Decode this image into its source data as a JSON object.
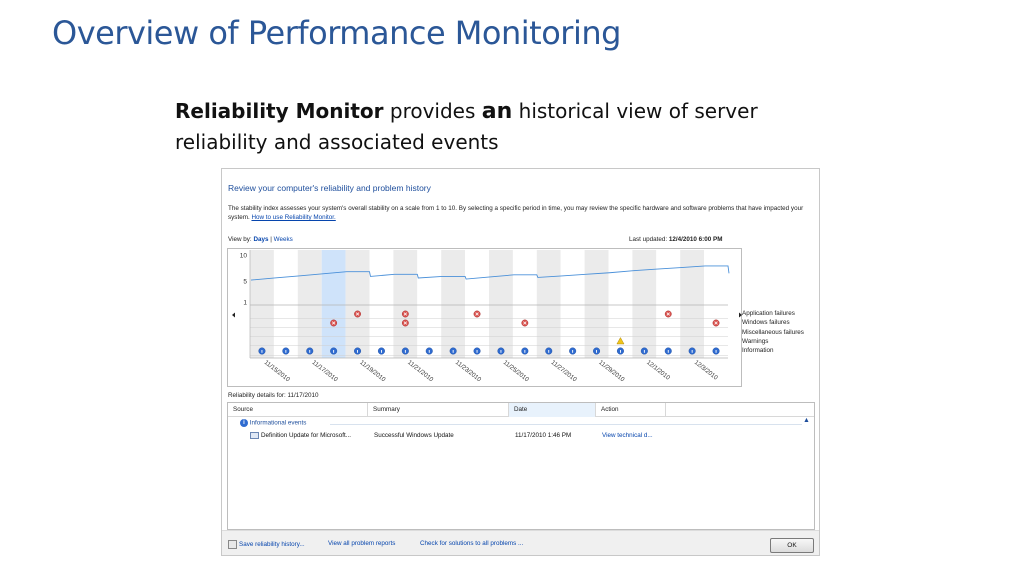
{
  "slide": {
    "title": "Overview of Performance Monitoring",
    "subtitle_bold": "Reliability Monitor",
    "subtitle_mid": " provides ",
    "subtitle_an": "an",
    "subtitle_rest": " historical view of server reliability and associated events"
  },
  "monitor": {
    "heading": "Review your computer's reliability and problem history",
    "description": "The stability index assesses your system's overall stability on a scale from 1 to 10. By selecting a specific period in time, you may review the specific hardware and software problems that have impacted your system.",
    "how_to_link": "How to use Reliability Monitor.",
    "view_by_label": "View by:",
    "view_days": "Days",
    "view_sep": "|",
    "view_weeks": "Weeks",
    "last_updated_label": "Last updated:",
    "last_updated_value": "12/4/2010 6:00 PM",
    "details_label": "Reliability details for: 11/17/2010"
  },
  "chart_data": {
    "type": "line",
    "y_ticks": [
      "10",
      "5",
      "1"
    ],
    "ylim": [
      1,
      10
    ],
    "selected_column": 3,
    "x_date_labels": [
      "11/15/2010",
      "11/17/2010",
      "11/19/2010",
      "11/21/2010",
      "11/23/2010",
      "11/25/2010",
      "11/27/2010",
      "11/29/2010",
      "12/1/2010",
      "12/3/2010"
    ],
    "stability_index": [
      5.2,
      5.6,
      6.0,
      6.4,
      6.8,
      5.9,
      6.3,
      5.6,
      5.9,
      5.4,
      5.8,
      6.2,
      5.7,
      6.0,
      6.3,
      6.6,
      7.0,
      7.3,
      7.6,
      7.9,
      6.5
    ],
    "rows": [
      "Application failures",
      "Windows failures",
      "Miscellaneous failures",
      "Warnings",
      "Information"
    ],
    "application_failure_columns": [
      4,
      6,
      9,
      17
    ],
    "windows_failure_columns": [
      3,
      6,
      11,
      19
    ],
    "warning_columns": [
      15
    ],
    "information_columns": [
      0,
      1,
      2,
      3,
      4,
      5,
      6,
      7,
      8,
      9,
      10,
      11,
      12,
      13,
      14,
      15,
      16,
      17,
      18,
      19
    ]
  },
  "table": {
    "columns": [
      "Source",
      "Summary",
      "Date",
      "Action"
    ],
    "group_label": "Informational events",
    "row": {
      "source": "Definition Update for Microsoft...",
      "summary": "Successful Windows Update",
      "date": "11/17/2010 1:46 PM",
      "action": "View  technical d..."
    }
  },
  "footer": {
    "save_link": "Save reliability history...",
    "reports_link": "View all problem reports",
    "solutions_link": "Check for solutions to all problems ...",
    "ok_label": "OK"
  },
  "colors": {
    "title": "#2b5797",
    "link": "#0645ad",
    "line": "#4a90d9",
    "error": "#d9534f",
    "warning": "#f0c419",
    "info": "#2f6bd0",
    "selected": "#cfe3fa"
  }
}
